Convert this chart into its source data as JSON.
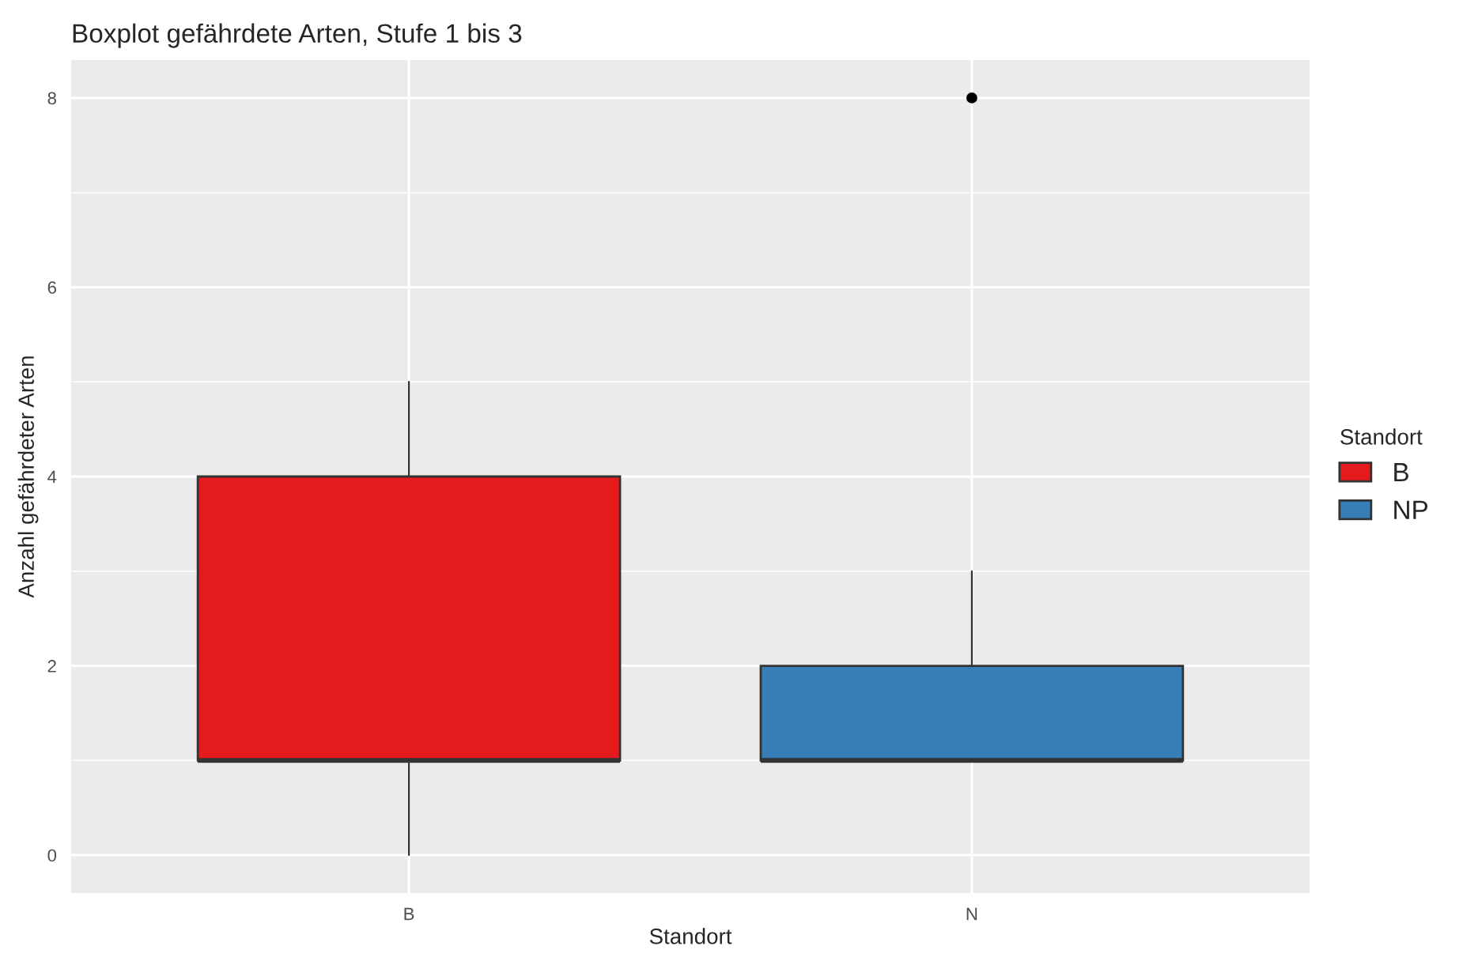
{
  "chart_data": {
    "type": "box",
    "title": "Boxplot gefährdete Arten, Stufe 1 bis 3",
    "xlabel": "Standort",
    "ylabel": "Anzahl gefährdeter Arten",
    "legend_title": "Standort",
    "categories": [
      "B",
      "N"
    ],
    "series": [
      {
        "name": "B",
        "color": "#e41a1c",
        "boxes": [
          {
            "low": 0,
            "q1": 1,
            "median": 1,
            "q3": 4,
            "high": 5
          },
          null
        ]
      },
      {
        "name": "NP",
        "color": "#377eb8",
        "boxes": [
          null,
          {
            "low": 1,
            "q1": 1,
            "median": 1,
            "q3": 2,
            "high": 3,
            "outliers": [
              8
            ]
          }
        ]
      }
    ],
    "ylim": [
      -0.4,
      8.4
    ],
    "yticks": [
      0,
      2,
      4,
      6,
      8
    ],
    "grid": true,
    "legend": "right"
  }
}
